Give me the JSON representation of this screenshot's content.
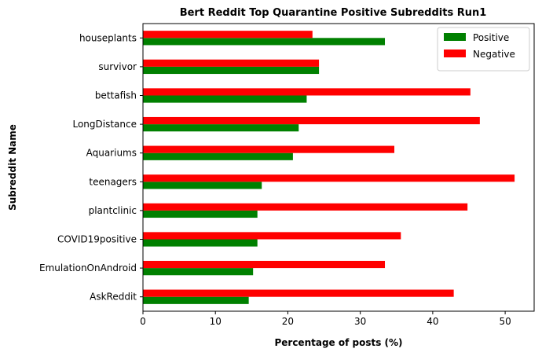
{
  "chart_data": {
    "type": "bar",
    "orientation": "horizontal",
    "title": "Bert Reddit Top Quarantine Positive Subreddits Run1",
    "xlabel": "Percentage of posts (%)",
    "ylabel": "Subreddit Name",
    "xlim": [
      0,
      54
    ],
    "xticks": [
      "0",
      "10",
      "20",
      "30",
      "40",
      "50"
    ],
    "grid": false,
    "legend_position": "top-right",
    "categories": [
      "AskReddit",
      "EmulationOnAndroid",
      "COVID19positive",
      "plantclinic",
      "teenagers",
      "Aquariums",
      "LongDistance",
      "bettafish",
      "survivor",
      "houseplants"
    ],
    "series": [
      {
        "name": "Positive",
        "color": "#008000",
        "values": [
          14.6,
          15.2,
          15.8,
          15.8,
          16.4,
          20.7,
          21.5,
          22.6,
          24.3,
          33.4
        ]
      },
      {
        "name": "Negative",
        "color": "#ff0000",
        "values": [
          42.9,
          33.4,
          35.6,
          44.8,
          51.3,
          34.7,
          46.5,
          45.2,
          24.3,
          23.4
        ]
      }
    ]
  }
}
